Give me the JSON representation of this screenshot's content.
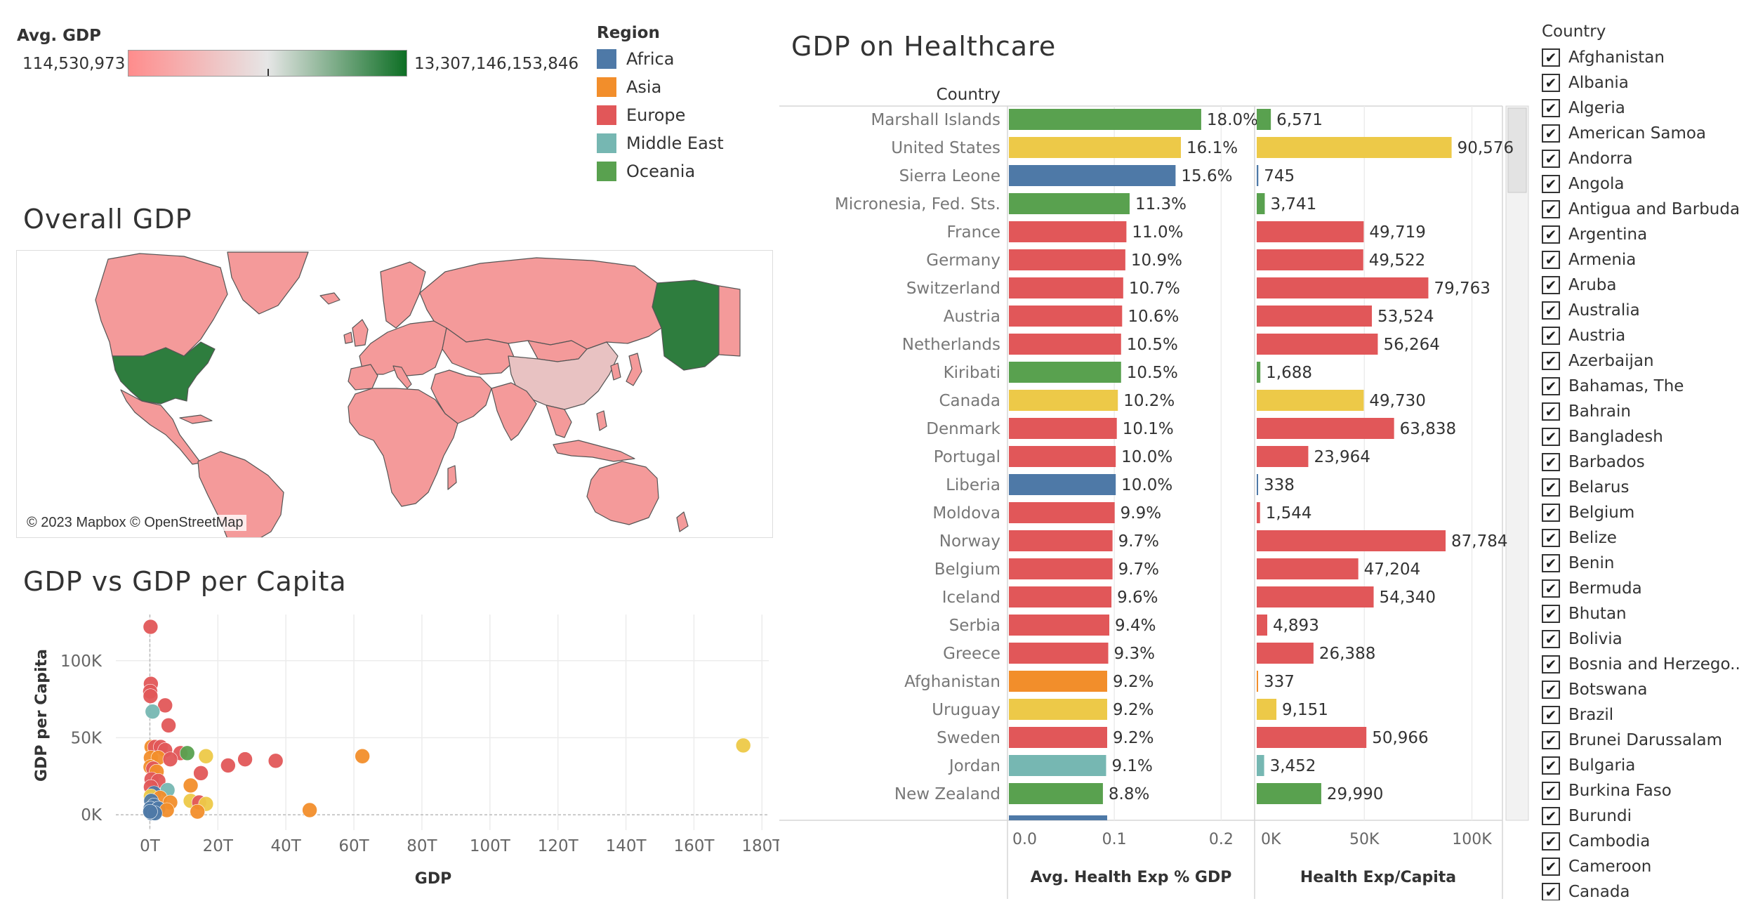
{
  "avg_gdp_legend": {
    "title": "Avg. GDP",
    "min_label": "114,530,973",
    "max_label": "13,307,146,153,846",
    "low_color": "#ff8c8c",
    "mid_color": "#e6e6e6",
    "high_color": "#0e6f25"
  },
  "region_legend": {
    "title": "Region",
    "items": [
      {
        "label": "Africa",
        "color": "#4e79a7"
      },
      {
        "label": "Asia",
        "color": "#f28e2b"
      },
      {
        "label": "Europe",
        "color": "#e15759"
      },
      {
        "label": "Middle East",
        "color": "#76b7b2"
      },
      {
        "label": "Oceania",
        "color": "#59a14f"
      }
    ]
  },
  "map": {
    "title": "Overall GDP",
    "attribution": "© 2023 Mapbox © OpenStreetMap",
    "land_color": "#f49a9a",
    "highlight_color": "#2e7d3e",
    "china_color": "#e8c2c2"
  },
  "chart_data": [
    {
      "type": "scatter",
      "title": "GDP vs GDP per Capita",
      "xlabel": "GDP",
      "ylabel": "GDP per Capita",
      "xlim": [
        -10,
        182
      ],
      "ylim": [
        -10,
        130
      ],
      "x_unit": "T",
      "y_unit": "K",
      "x_ticks": [
        "0T",
        "20T",
        "40T",
        "60T",
        "80T",
        "100T",
        "120T",
        "140T",
        "160T",
        "180T"
      ],
      "x_tick_values": [
        0,
        20,
        40,
        60,
        80,
        100,
        120,
        140,
        160,
        180
      ],
      "y_ticks": [
        "0K",
        "50K",
        "100K"
      ],
      "y_tick_values": [
        0,
        50,
        100
      ],
      "grid": true,
      "points": [
        {
          "x": 0.2,
          "y": 122,
          "region": "Europe"
        },
        {
          "x": 0.3,
          "y": 85,
          "region": "Europe"
        },
        {
          "x": 0.1,
          "y": 80,
          "region": "Europe"
        },
        {
          "x": 0.2,
          "y": 77,
          "region": "Europe"
        },
        {
          "x": 4.5,
          "y": 71,
          "region": "Europe"
        },
        {
          "x": 0.8,
          "y": 67,
          "region": "Middle East"
        },
        {
          "x": 5.5,
          "y": 58,
          "region": "Europe"
        },
        {
          "x": 0.5,
          "y": 44,
          "region": "Asia"
        },
        {
          "x": 1.5,
          "y": 44,
          "region": "Europe"
        },
        {
          "x": 3.2,
          "y": 44,
          "region": "Europe"
        },
        {
          "x": 4.5,
          "y": 42,
          "region": "Europe"
        },
        {
          "x": 9,
          "y": 40,
          "region": "Europe"
        },
        {
          "x": 11,
          "y": 40,
          "region": "Oceania"
        },
        {
          "x": 16.5,
          "y": 38,
          "region": "Americas"
        },
        {
          "x": 62.5,
          "y": 38,
          "region": "Asia"
        },
        {
          "x": 174.5,
          "y": 45,
          "region": "Americas"
        },
        {
          "x": 0.3,
          "y": 37,
          "region": "Asia"
        },
        {
          "x": 2.5,
          "y": 37,
          "region": "Asia"
        },
        {
          "x": 6,
          "y": 36,
          "region": "Europe"
        },
        {
          "x": 28,
          "y": 36,
          "region": "Europe"
        },
        {
          "x": 37,
          "y": 35,
          "region": "Europe"
        },
        {
          "x": 23,
          "y": 32,
          "region": "Europe"
        },
        {
          "x": 0.2,
          "y": 31,
          "region": "Asia"
        },
        {
          "x": 1.0,
          "y": 30,
          "region": "Europe"
        },
        {
          "x": 2,
          "y": 28,
          "region": "Asia"
        },
        {
          "x": 15,
          "y": 27,
          "region": "Europe"
        },
        {
          "x": 0.5,
          "y": 23,
          "region": "Europe"
        },
        {
          "x": 2.5,
          "y": 22,
          "region": "Europe"
        },
        {
          "x": 0.3,
          "y": 18,
          "region": "Europe"
        },
        {
          "x": 5.2,
          "y": 16,
          "region": "Middle East"
        },
        {
          "x": 12,
          "y": 19,
          "region": "Asia"
        },
        {
          "x": 1.2,
          "y": 14,
          "region": "Africa"
        },
        {
          "x": 0.3,
          "y": 12,
          "region": "Americas"
        },
        {
          "x": 3,
          "y": 11,
          "region": "Asia"
        },
        {
          "x": 0.4,
          "y": 9,
          "region": "Africa"
        },
        {
          "x": 12,
          "y": 9,
          "region": "Americas"
        },
        {
          "x": 14.5,
          "y": 8,
          "region": "Europe"
        },
        {
          "x": 16.5,
          "y": 7,
          "region": "Americas"
        },
        {
          "x": 6,
          "y": 8,
          "region": "Asia"
        },
        {
          "x": 1.2,
          "y": 6,
          "region": "Africa"
        },
        {
          "x": 0.2,
          "y": 4,
          "region": "Africa"
        },
        {
          "x": 2.5,
          "y": 4,
          "region": "Africa"
        },
        {
          "x": 5,
          "y": 3,
          "region": "Asia"
        },
        {
          "x": 14,
          "y": 2,
          "region": "Asia"
        },
        {
          "x": 47,
          "y": 3,
          "region": "Asia"
        },
        {
          "x": 0.5,
          "y": 1,
          "region": "Africa"
        },
        {
          "x": 1.5,
          "y": 1,
          "region": "Africa"
        },
        {
          "x": 0.1,
          "y": 2,
          "region": "Africa"
        }
      ],
      "region_colors": {
        "Africa": "#4e79a7",
        "Asia": "#f28e2b",
        "Europe": "#e15759",
        "Middle East": "#76b7b2",
        "Oceania": "#59a14f",
        "Americas": "#edc948"
      }
    },
    {
      "type": "bar",
      "title": "GDP on Healthcare",
      "row_header": "Country",
      "left_measure": "Avg. Health Exp % GDP",
      "right_measure": "Health Exp/Capita",
      "left_ticks": [
        "0.0",
        "0.1",
        "0.2"
      ],
      "left_tick_values": [
        0.0,
        0.1,
        0.2
      ],
      "left_max": 0.2313,
      "right_ticks": [
        "0K",
        "50K",
        "100K"
      ],
      "right_tick_values": [
        0,
        50000,
        100000
      ],
      "right_max": 114200,
      "rows": [
        {
          "country": "Marshall Islands",
          "pct": 0.18,
          "pct_label": "18.0%",
          "cap": 6571,
          "cap_label": "6,571",
          "color": "#59a14f"
        },
        {
          "country": "United States",
          "pct": 0.161,
          "pct_label": "16.1%",
          "cap": 90576,
          "cap_label": "90,576",
          "color": "#edc948"
        },
        {
          "country": "Sierra Leone",
          "pct": 0.156,
          "pct_label": "15.6%",
          "cap": 745,
          "cap_label": "745",
          "color": "#4e79a7"
        },
        {
          "country": "Micronesia, Fed. Sts.",
          "pct": 0.113,
          "pct_label": "11.3%",
          "cap": 3741,
          "cap_label": "3,741",
          "color": "#59a14f"
        },
        {
          "country": "France",
          "pct": 0.11,
          "pct_label": "11.0%",
          "cap": 49719,
          "cap_label": "49,719",
          "color": "#e15759"
        },
        {
          "country": "Germany",
          "pct": 0.109,
          "pct_label": "10.9%",
          "cap": 49522,
          "cap_label": "49,522",
          "color": "#e15759"
        },
        {
          "country": "Switzerland",
          "pct": 0.107,
          "pct_label": "10.7%",
          "cap": 79763,
          "cap_label": "79,763",
          "color": "#e15759"
        },
        {
          "country": "Austria",
          "pct": 0.106,
          "pct_label": "10.6%",
          "cap": 53524,
          "cap_label": "53,524",
          "color": "#e15759"
        },
        {
          "country": "Netherlands",
          "pct": 0.105,
          "pct_label": "10.5%",
          "cap": 56264,
          "cap_label": "56,264",
          "color": "#e15759"
        },
        {
          "country": "Kiribati",
          "pct": 0.105,
          "pct_label": "10.5%",
          "cap": 1688,
          "cap_label": "1,688",
          "color": "#59a14f"
        },
        {
          "country": "Canada",
          "pct": 0.102,
          "pct_label": "10.2%",
          "cap": 49730,
          "cap_label": "49,730",
          "color": "#edc948"
        },
        {
          "country": "Denmark",
          "pct": 0.101,
          "pct_label": "10.1%",
          "cap": 63838,
          "cap_label": "63,838",
          "color": "#e15759"
        },
        {
          "country": "Portugal",
          "pct": 0.1,
          "pct_label": "10.0%",
          "cap": 23964,
          "cap_label": "23,964",
          "color": "#e15759"
        },
        {
          "country": "Liberia",
          "pct": 0.1,
          "pct_label": "10.0%",
          "cap": 338,
          "cap_label": "338",
          "color": "#4e79a7"
        },
        {
          "country": "Moldova",
          "pct": 0.099,
          "pct_label": "9.9%",
          "cap": 1544,
          "cap_label": "1,544",
          "color": "#e15759"
        },
        {
          "country": "Norway",
          "pct": 0.097,
          "pct_label": "9.7%",
          "cap": 87784,
          "cap_label": "87,784",
          "color": "#e15759"
        },
        {
          "country": "Belgium",
          "pct": 0.097,
          "pct_label": "9.7%",
          "cap": 47204,
          "cap_label": "47,204",
          "color": "#e15759"
        },
        {
          "country": "Iceland",
          "pct": 0.096,
          "pct_label": "9.6%",
          "cap": 54340,
          "cap_label": "54,340",
          "color": "#e15759"
        },
        {
          "country": "Serbia",
          "pct": 0.094,
          "pct_label": "9.4%",
          "cap": 4893,
          "cap_label": "4,893",
          "color": "#e15759"
        },
        {
          "country": "Greece",
          "pct": 0.093,
          "pct_label": "9.3%",
          "cap": 26388,
          "cap_label": "26,388",
          "color": "#e15759"
        },
        {
          "country": "Afghanistan",
          "pct": 0.092,
          "pct_label": "9.2%",
          "cap": 337,
          "cap_label": "337",
          "color": "#f28e2b"
        },
        {
          "country": "Uruguay",
          "pct": 0.092,
          "pct_label": "9.2%",
          "cap": 9151,
          "cap_label": "9,151",
          "color": "#edc948"
        },
        {
          "country": "Sweden",
          "pct": 0.092,
          "pct_label": "9.2%",
          "cap": 50966,
          "cap_label": "50,966",
          "color": "#e15759"
        },
        {
          "country": "Jordan",
          "pct": 0.091,
          "pct_label": "9.1%",
          "cap": 3452,
          "cap_label": "3,452",
          "color": "#76b7b2"
        },
        {
          "country": "New Zealand",
          "pct": 0.088,
          "pct_label": "8.8%",
          "cap": 29990,
          "cap_label": "29,990",
          "color": "#59a14f"
        }
      ],
      "partial_row": {
        "pct": 0.092,
        "color": "#4e79a7"
      }
    }
  ],
  "country_filter": {
    "title": "Country",
    "check_glyph": "✔",
    "items": [
      "Afghanistan",
      "Albania",
      "Algeria",
      "American Samoa",
      "Andorra",
      "Angola",
      "Antigua and Barbuda",
      "Argentina",
      "Armenia",
      "Aruba",
      "Australia",
      "Austria",
      "Azerbaijan",
      "Bahamas, The",
      "Bahrain",
      "Bangladesh",
      "Barbados",
      "Belarus",
      "Belgium",
      "Belize",
      "Benin",
      "Bermuda",
      "Bhutan",
      "Bolivia",
      "Bosnia and Herzego..",
      "Botswana",
      "Brazil",
      "Brunei Darussalam",
      "Bulgaria",
      "Burkina Faso",
      "Burundi",
      "Cambodia",
      "Cameroon",
      "Canada"
    ]
  }
}
